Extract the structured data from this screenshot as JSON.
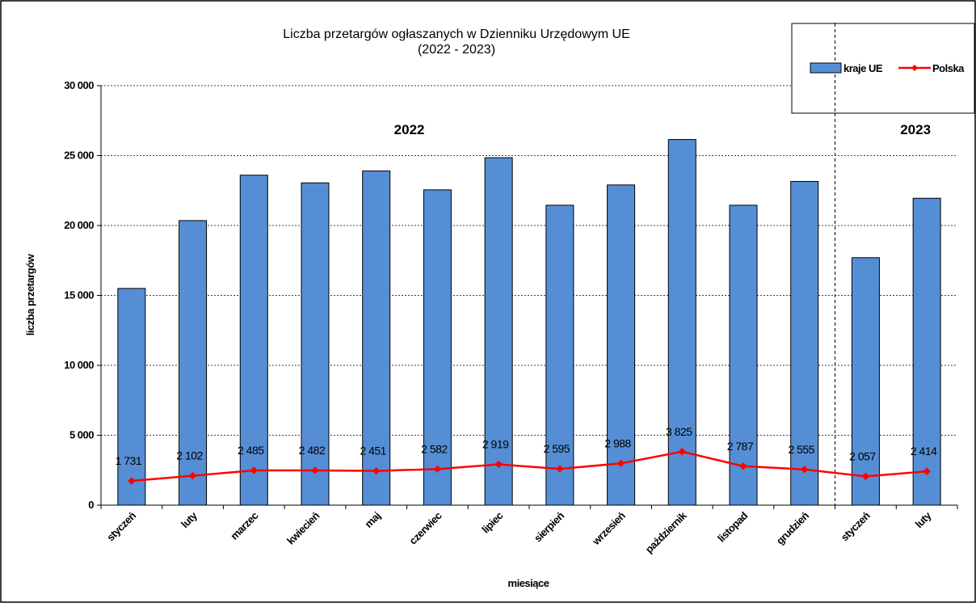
{
  "chart_data": {
    "type": "bar",
    "title": "Liczba przetargów ogłaszanych w Dzienniku Urzędowym UE",
    "subtitle": "(2022 - 2023)",
    "xlabel": "miesiące",
    "ylabel": "liczba przetargów",
    "categories": [
      "styczeń",
      "luty",
      "marzec",
      "kwiecień",
      "maj",
      "czerwiec",
      "lipiec",
      "sierpień",
      "wrzesień",
      "październik",
      "listopad",
      "grudzień",
      "styczeń",
      "luty"
    ],
    "series": [
      {
        "name": "kraje UE",
        "kind": "bar",
        "color": "#558ed5",
        "values": [
          15500,
          20350,
          23600,
          23050,
          23900,
          22550,
          24850,
          21450,
          22900,
          26150,
          21450,
          23150,
          17700,
          21950
        ]
      },
      {
        "name": "Polska",
        "kind": "line",
        "color": "#ff0000",
        "values": [
          1731,
          2102,
          2485,
          2482,
          2451,
          2582,
          2919,
          2595,
          2988,
          3825,
          2787,
          2555,
          2057,
          2414
        ],
        "labels": [
          "1 731",
          "2 102",
          "2 485",
          "2 482",
          "2 451",
          "2 582",
          "2 919",
          "2 595",
          "2 988",
          "3 825",
          "2 787",
          "2 555",
          "2 057",
          "2 414"
        ]
      }
    ],
    "ylim": [
      0,
      30000
    ],
    "yticks": [
      0,
      5000,
      10000,
      15000,
      20000,
      25000,
      30000
    ],
    "ytick_labels": [
      "0",
      "5 000",
      "10 000",
      "15 000",
      "20 000",
      "25 000",
      "30 000"
    ],
    "grid": "horizontal dashed",
    "legend": "top-right",
    "year_labels": [
      {
        "text": "2022",
        "category_index": 5
      },
      {
        "text": "2023",
        "category_index": 13
      }
    ],
    "year_divider_after_index": 11
  }
}
